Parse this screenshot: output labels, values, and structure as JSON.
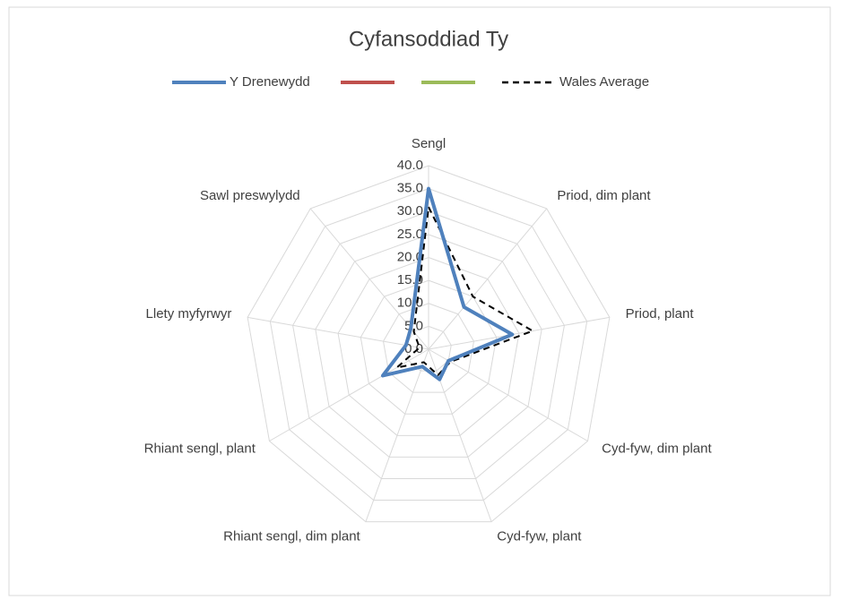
{
  "chart_data": {
    "type": "radar",
    "title": "Cyfansoddiad Ty",
    "categories": [
      "Sengl",
      "Priod, dim plant",
      "Priod, plant",
      "Cyd-fyw, dim plant",
      "Cyd-fyw, plant",
      "Rhiant sengl, dim plant",
      "Rhiant sengl, plant",
      "Llety myfyrwyr",
      "Sawl preswylydd"
    ],
    "series": [
      {
        "name": "Y Drenewydd",
        "color": "#4f81bd",
        "dash": "solid",
        "values": [
          35,
          12,
          18.5,
          5,
          7,
          4,
          11.5,
          5,
          6
        ]
      },
      {
        "color": "#c0504d",
        "dash": "solid",
        "values": [
          null,
          null,
          null,
          null,
          null,
          null,
          null,
          null,
          null
        ]
      },
      {
        "color": "#9bbb59",
        "dash": "solid",
        "values": [
          null,
          null,
          null,
          null,
          null,
          null,
          null,
          null,
          null
        ]
      },
      {
        "name": "Wales Average",
        "color": "#000000",
        "dash": "dashed",
        "values": [
          31,
          15,
          23,
          5.5,
          6,
          3,
          8,
          2,
          5
        ]
      }
    ],
    "ylim": [
      0,
      40
    ],
    "yticks": [
      {
        "value": 0,
        "label": "0.0"
      },
      {
        "value": 5,
        "label": "5.0"
      },
      {
        "value": 10,
        "label": "10.0"
      },
      {
        "value": 15,
        "label": "15.0"
      },
      {
        "value": 20,
        "label": "20.0"
      },
      {
        "value": 25,
        "label": "25.0"
      },
      {
        "value": 30,
        "label": "30.0"
      },
      {
        "value": 35,
        "label": "35.0"
      },
      {
        "value": 40,
        "label": "40.0"
      }
    ],
    "grid": true,
    "legend": "top"
  }
}
